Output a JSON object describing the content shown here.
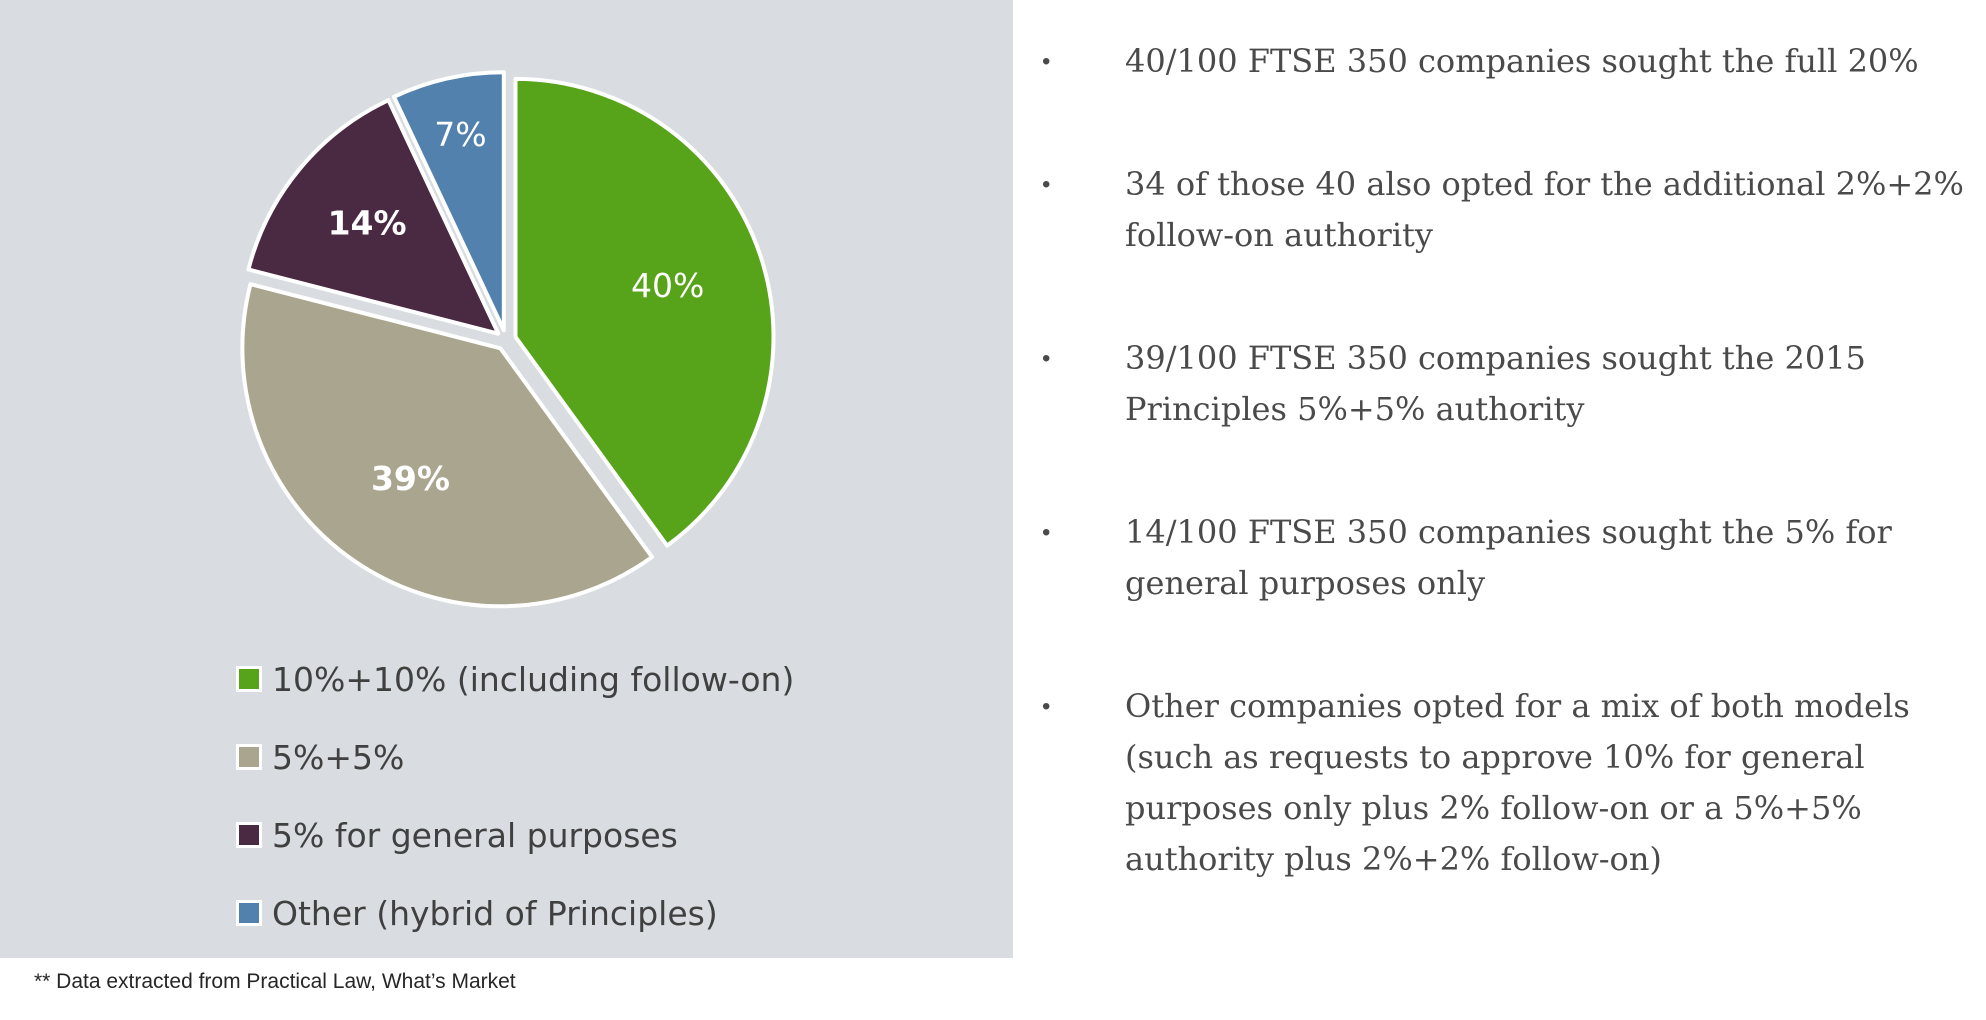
{
  "chart_data": {
    "type": "pie",
    "slices": [
      {
        "label": "10%+10% (including follow-on)",
        "value": 40,
        "display": "40%",
        "color": "#57a31a"
      },
      {
        "label": "5%+5%",
        "value": 39,
        "display": "39%",
        "color": "#aaa58e"
      },
      {
        "label": "5% for general purposes",
        "value": 14,
        "display": "14%",
        "color": "#4a2942"
      },
      {
        "label": "Other (hybrid of Principles)",
        "value": 7,
        "display": "7%",
        "color": "#5281ad"
      }
    ],
    "legend_position": "bottom"
  },
  "footnote": "** Data extracted from Practical Law, What’s Market",
  "bullets": [
    {
      "marker": "•",
      "text": "40/100 FTSE 350 companies sought the full 20%"
    },
    {
      "marker": "•",
      "text": "34 of those 40 also opted for the additional 2%+2% follow-on authority"
    },
    {
      "marker": "•",
      "text": "39/100 FTSE 350 companies sought the 2015 Principles 5%+5% authority"
    },
    {
      "marker": "•",
      "text": "14/100 FTSE 350 companies sought the 5% for general purposes only"
    },
    {
      "marker": "•",
      "text": "Other companies opted for a mix of both models (such as requests to approve 10% for general purposes only plus 2% follow-on or a 5%+5% authority plus 2%+2% follow-on)"
    }
  ]
}
